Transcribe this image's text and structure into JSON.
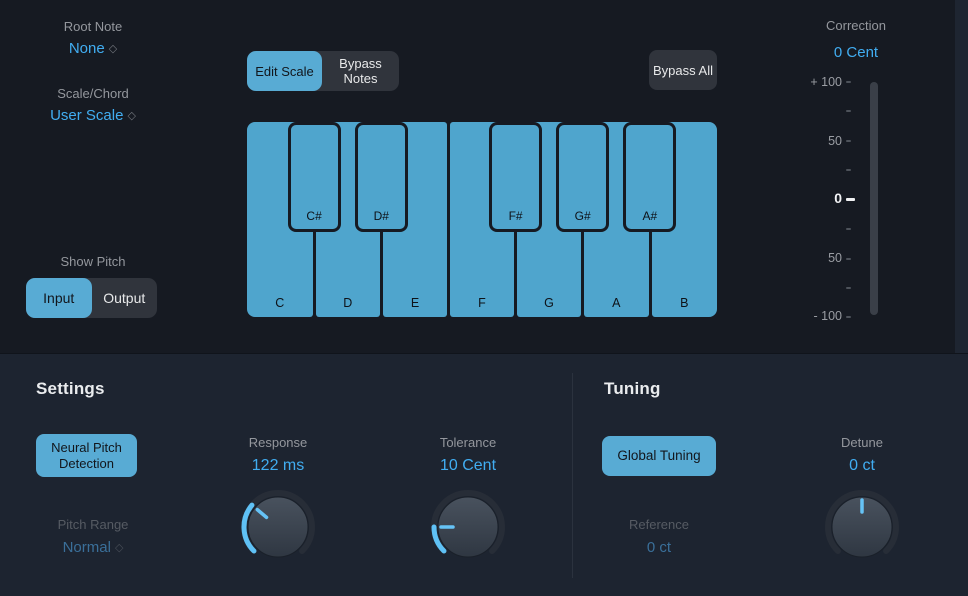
{
  "colors": {
    "accent_text": "#41adf1",
    "button_blue": "#58abd4",
    "key_blue": "#4fa5cd",
    "label_gray": "#94979d",
    "dimmed_label": "#565b63",
    "dimmed_value": "#3a6f99",
    "bg_top": "#161a22",
    "bg_bottom": "#1d2430"
  },
  "root_note": {
    "label": "Root Note",
    "value": "None"
  },
  "scale_chord": {
    "label": "Scale/Chord",
    "value": "User Scale"
  },
  "show_pitch": {
    "label": "Show Pitch",
    "input": "Input",
    "output": "Output",
    "selected": "Input"
  },
  "scale_controls": {
    "edit_scale": "Edit Scale",
    "bypass_notes": "Bypass Notes",
    "bypass_all": "Bypass All",
    "selected": "Edit Scale"
  },
  "keyboard": {
    "white_keys": [
      "C",
      "D",
      "E",
      "F",
      "G",
      "A",
      "B"
    ],
    "black_keys": [
      "C#",
      "D#",
      "F#",
      "G#",
      "A#"
    ]
  },
  "correction": {
    "label": "Correction",
    "value": "0 Cent",
    "scale_labels": [
      "+ 100",
      "50",
      "0",
      "50",
      "- 100"
    ]
  },
  "settings": {
    "title": "Settings",
    "neural_pitch_detection": "Neural Pitch Detection",
    "pitch_range": {
      "label": "Pitch Range",
      "value": "Normal"
    },
    "response": {
      "label": "Response",
      "value": "122 ms",
      "angle": -50,
      "bipolar": false
    },
    "tolerance": {
      "label": "Tolerance",
      "value": "10 Cent",
      "angle": -90,
      "bipolar": false
    }
  },
  "tuning": {
    "title": "Tuning",
    "global_tuning": "Global Tuning",
    "reference": {
      "label": "Reference",
      "value": "0 ct"
    },
    "detune": {
      "label": "Detune",
      "value": "0 ct",
      "angle": 0,
      "bipolar": true
    }
  }
}
